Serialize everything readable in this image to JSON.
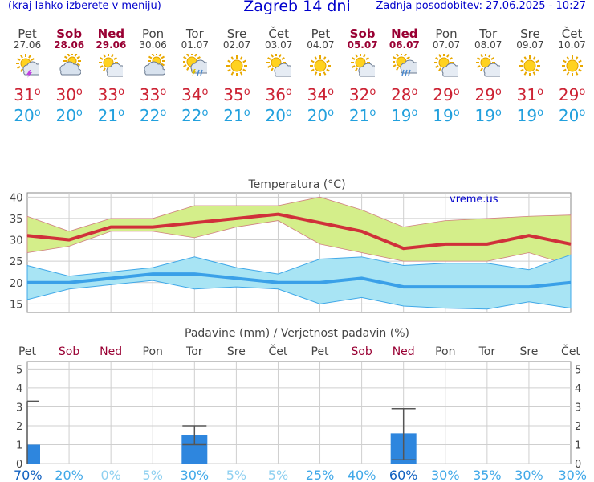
{
  "header": {
    "hint": "(kraj lahko izberete v meniju)",
    "title": "Zagreb 14 dni",
    "updated": "Zadnja posodobitev: 27.06.2025 - 10:27"
  },
  "colors": {
    "max_line": "#d0303a",
    "min_line": "#3aa0e8",
    "max_band": "#d4ee8a",
    "min_band": "#a8e4f4",
    "precip_bar": "#2e86de",
    "weekend": "#990033"
  },
  "days": [
    {
      "name": "Pet",
      "date": "27.06",
      "weekend": false,
      "icon": "sun-cloud-thunder-icon",
      "max": "31",
      "min": "20",
      "prob": "70%"
    },
    {
      "name": "Sob",
      "date": "28.06",
      "weekend": true,
      "icon": "cloud-sun-icon",
      "max": "30",
      "min": "20",
      "prob": "20%"
    },
    {
      "name": "Ned",
      "date": "29.06",
      "weekend": true,
      "icon": "sun-cloud-icon",
      "max": "33",
      "min": "21",
      "prob": "0%"
    },
    {
      "name": "Pon",
      "date": "30.06",
      "weekend": false,
      "icon": "cloud-sun-icon",
      "max": "33",
      "min": "22",
      "prob": "5%"
    },
    {
      "name": "Tor",
      "date": "01.07",
      "weekend": false,
      "icon": "sun-cloud-storm-icon",
      "max": "34",
      "min": "22",
      "prob": "30%"
    },
    {
      "name": "Sre",
      "date": "02.07",
      "weekend": false,
      "icon": "sun-icon",
      "max": "35",
      "min": "21",
      "prob": "5%"
    },
    {
      "name": "Čet",
      "date": "03.07",
      "weekend": false,
      "icon": "sun-cloud-icon",
      "max": "36",
      "min": "20",
      "prob": "5%"
    },
    {
      "name": "Pet",
      "date": "04.07",
      "weekend": false,
      "icon": "sun-icon",
      "max": "34",
      "min": "20",
      "prob": "25%"
    },
    {
      "name": "Sob",
      "date": "05.07",
      "weekend": true,
      "icon": "sun-cloud-icon",
      "max": "32",
      "min": "21",
      "prob": "40%"
    },
    {
      "name": "Ned",
      "date": "06.07",
      "weekend": true,
      "icon": "sun-cloud-rain-icon",
      "max": "28",
      "min": "19",
      "prob": "60%"
    },
    {
      "name": "Pon",
      "date": "07.07",
      "weekend": false,
      "icon": "sun-cloud-icon",
      "max": "29",
      "min": "19",
      "prob": "30%"
    },
    {
      "name": "Tor",
      "date": "08.07",
      "weekend": false,
      "icon": "sun-cloud-icon",
      "max": "29",
      "min": "19",
      "prob": "35%"
    },
    {
      "name": "Sre",
      "date": "09.07",
      "weekend": false,
      "icon": "sun-icon",
      "max": "31",
      "min": "19",
      "prob": "30%"
    },
    {
      "name": "Čet",
      "date": "10.07",
      "weekend": false,
      "icon": "sun-icon",
      "max": "29",
      "min": "20",
      "prob": "30%"
    }
  ],
  "chart_data": [
    {
      "type": "line",
      "title": "Temperatura (°C)",
      "watermark": "vreme.us",
      "categories": [
        "Pet",
        "Sob",
        "Ned",
        "Pon",
        "Tor",
        "Sre",
        "Čet",
        "Pet",
        "Sob",
        "Ned",
        "Pon",
        "Tor",
        "Sre",
        "Čet"
      ],
      "ylim": [
        13,
        41
      ],
      "yticks": [
        "15",
        "20",
        "25",
        "30",
        "35",
        "40"
      ],
      "grid": true,
      "series": [
        {
          "role": "max",
          "values": [
            31,
            30,
            33,
            33,
            34,
            35,
            36,
            34,
            32,
            28,
            29,
            29,
            31,
            29
          ]
        },
        {
          "role": "min",
          "values": [
            20,
            20,
            21,
            22,
            22,
            21,
            20,
            20,
            21,
            19,
            19,
            19,
            19,
            20
          ]
        }
      ],
      "bands": [
        {
          "role": "max-range",
          "upper": [
            35.5,
            32,
            35,
            35,
            38,
            38,
            38,
            40,
            37,
            33,
            34.5,
            35,
            35.5,
            35.8
          ],
          "lower": [
            27,
            28.5,
            32,
            32,
            30.5,
            33,
            34.5,
            29,
            27,
            25,
            25,
            25,
            27,
            24
          ]
        },
        {
          "role": "min-range",
          "upper": [
            24,
            21.5,
            22.5,
            23.5,
            26,
            23.5,
            22,
            25.5,
            26,
            24,
            24.5,
            24.5,
            23,
            26.5
          ],
          "lower": [
            16,
            18.5,
            19.5,
            20.5,
            18.5,
            19,
            18.5,
            15,
            16.5,
            14.5,
            14,
            13.8,
            15.5,
            14
          ]
        }
      ]
    },
    {
      "type": "bar",
      "title": "Padavine (mm) / Verjetnost padavin (%)",
      "categories": [
        "Pet",
        "Sob",
        "Ned",
        "Pon",
        "Tor",
        "Sre",
        "Čet",
        "Pet",
        "Sob",
        "Ned",
        "Pon",
        "Tor",
        "Sre",
        "Čet"
      ],
      "ylim": [
        0,
        5.4
      ],
      "yticks": [
        "0",
        "1",
        "2",
        "3",
        "4",
        "5"
      ],
      "grid": true,
      "values": [
        1.0,
        0,
        0,
        0,
        1.5,
        0,
        0,
        0,
        0,
        1.6,
        0,
        0,
        0,
        0
      ],
      "error_high": [
        3.3,
        0,
        0,
        0,
        2.0,
        0,
        0,
        0,
        0,
        2.9,
        0,
        0,
        0,
        0
      ],
      "error_low": [
        0,
        0,
        0,
        0,
        1.0,
        0,
        0,
        0,
        0,
        0.2,
        0,
        0,
        0,
        0
      ],
      "probabilities": [
        "70%",
        "20%",
        "0%",
        "5%",
        "30%",
        "5%",
        "5%",
        "25%",
        "40%",
        "60%",
        "30%",
        "35%",
        "30%",
        "30%"
      ]
    }
  ]
}
